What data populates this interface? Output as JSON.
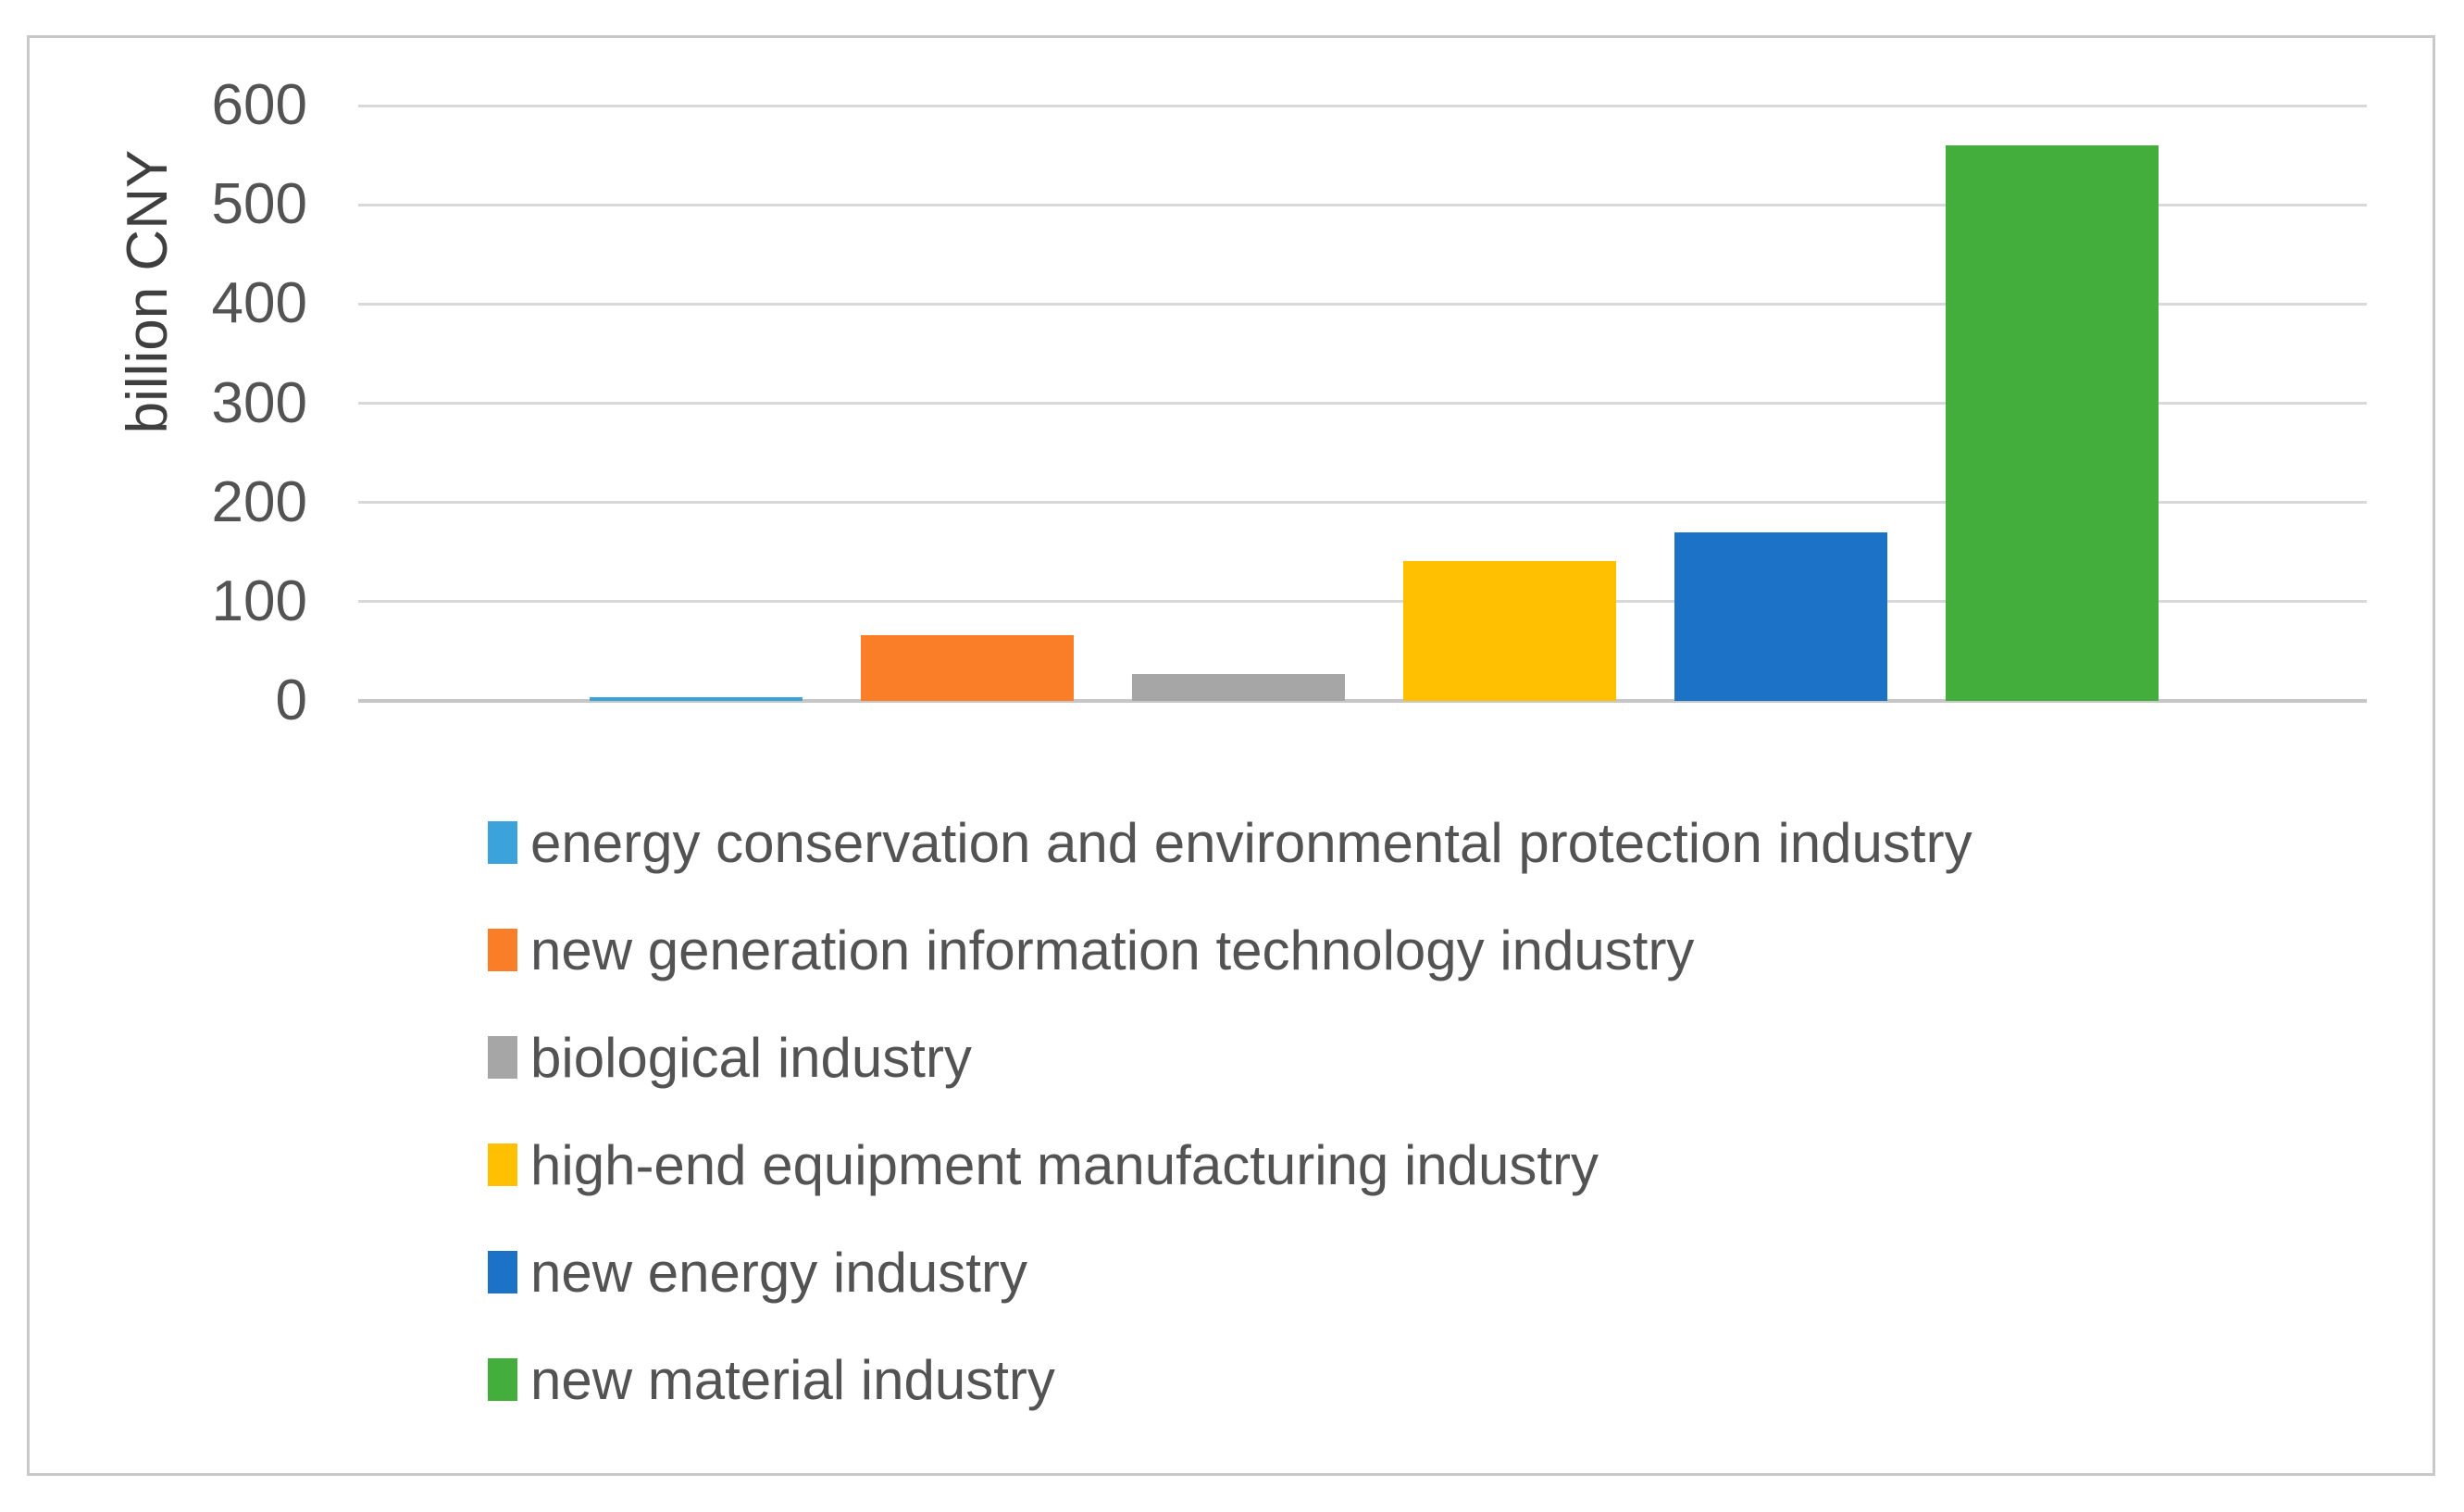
{
  "chart_data": {
    "type": "bar",
    "title": "",
    "xlabel": "",
    "ylabel": "billion CNY",
    "ylim": [
      0,
      600
    ],
    "yticks": [
      0,
      100,
      200,
      300,
      400,
      500,
      600
    ],
    "grid": true,
    "legend_position": "bottom-left",
    "categories": [
      ""
    ],
    "series": [
      {
        "name": "energy conservation and environmental protection industry",
        "color": "#3BA2DB",
        "values": [
          4
        ]
      },
      {
        "name": "new generation information technology industry",
        "color": "#F97E27",
        "values": [
          66
        ]
      },
      {
        "name": "biological industry",
        "color": "#A6A6A6",
        "values": [
          27
        ]
      },
      {
        "name": "high-end equipment manufacturing industry",
        "color": "#FFC001",
        "values": [
          141
        ]
      },
      {
        "name": "new energy industry",
        "color": "#1B72C7",
        "values": [
          170
        ]
      },
      {
        "name": "new material industry",
        "color": "#43AE3C",
        "values": [
          560
        ]
      }
    ]
  }
}
